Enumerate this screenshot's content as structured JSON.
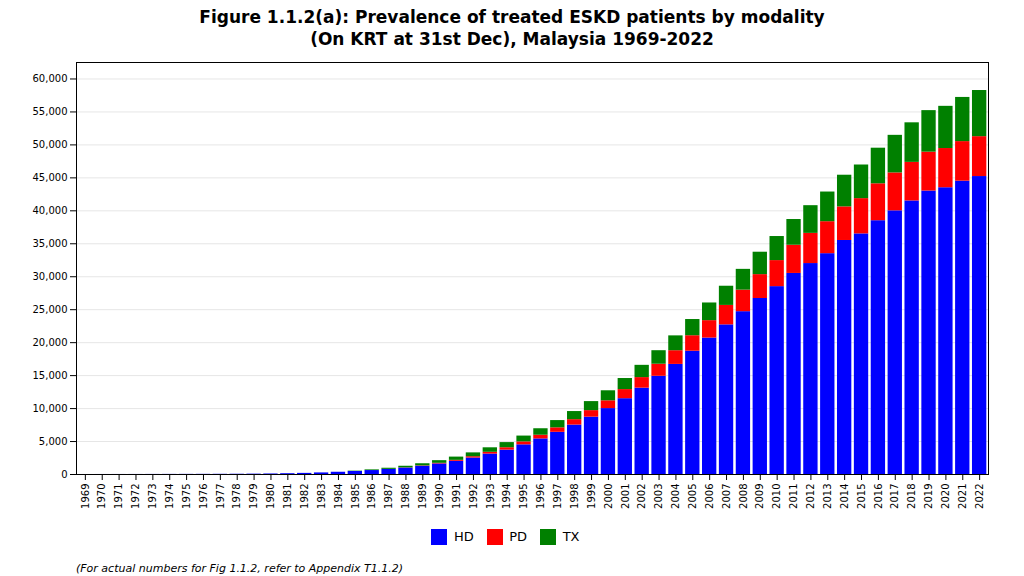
{
  "chart_data": {
    "type": "bar",
    "stacked": true,
    "title": "Figure 1.1.2(a): Prevalence of treated ESKD patients by modality",
    "subtitle": "(On KRT at 31st Dec), Malaysia 1969-2022",
    "caption": "(For actual numbers for Fig 1.1.2, refer to Appendix T1.1.2)",
    "categories": [
      "1969",
      "1970",
      "1971",
      "1972",
      "1973",
      "1974",
      "1975",
      "1976",
      "1977",
      "1978",
      "1979",
      "1980",
      "1981",
      "1982",
      "1983",
      "1984",
      "1985",
      "1986",
      "1987",
      "1988",
      "1989",
      "1990",
      "1991",
      "1992",
      "1993",
      "1994",
      "1995",
      "1996",
      "1997",
      "1998",
      "1999",
      "2000",
      "2001",
      "2002",
      "2003",
      "2004",
      "2005",
      "2006",
      "2007",
      "2008",
      "2009",
      "2010",
      "2011",
      "2012",
      "2013",
      "2014",
      "2015",
      "2016",
      "2017",
      "2018",
      "2019",
      "2020",
      "2021",
      "2022"
    ],
    "series": [
      {
        "name": "HD",
        "color": "#0000FF",
        "values": [
          2,
          4,
          6,
          8,
          12,
          16,
          20,
          25,
          30,
          40,
          55,
          80,
          120,
          170,
          240,
          340,
          460,
          600,
          780,
          980,
          1250,
          1600,
          2000,
          2500,
          3100,
          3700,
          4500,
          5400,
          6400,
          7500,
          8700,
          10000,
          11500,
          13100,
          14900,
          16700,
          18700,
          20700,
          22700,
          24700,
          26700,
          28500,
          30500,
          32000,
          33500,
          35500,
          36500,
          38500,
          40000,
          41500,
          43000,
          43500,
          44500,
          45200
        ]
      },
      {
        "name": "PD",
        "color": "#FF0000",
        "values": [
          0,
          0,
          0,
          0,
          0,
          0,
          0,
          0,
          0,
          0,
          0,
          0,
          0,
          0,
          0,
          0,
          0,
          0,
          0,
          30,
          60,
          100,
          150,
          200,
          270,
          360,
          450,
          560,
          680,
          820,
          990,
          1180,
          1380,
          1600,
          1830,
          2080,
          2350,
          2640,
          2950,
          3270,
          3620,
          3950,
          4280,
          4580,
          4850,
          5100,
          5350,
          5600,
          5750,
          5850,
          5900,
          5950,
          6000,
          6050
        ]
      },
      {
        "name": "TX",
        "color": "#008000",
        "values": [
          0,
          0,
          0,
          0,
          0,
          0,
          0,
          0,
          0,
          0,
          0,
          0,
          0,
          0,
          0,
          0,
          50,
          100,
          170,
          240,
          320,
          400,
          490,
          580,
          680,
          780,
          880,
          980,
          1100,
          1230,
          1370,
          1520,
          1680,
          1860,
          2050,
          2250,
          2460,
          2680,
          2910,
          3150,
          3400,
          3650,
          3900,
          4200,
          4500,
          4800,
          5100,
          5400,
          5700,
          6000,
          6300,
          6400,
          6700,
          7000
        ]
      }
    ],
    "ylim": [
      0,
      62500
    ],
    "yticks": [
      0,
      {
        "value": 5000,
        "label": "5,000"
      },
      {
        "value": 10000,
        "label": "10,000"
      },
      {
        "value": 15000,
        "label": "15,000"
      },
      {
        "value": 20000,
        "label": "20,000"
      },
      {
        "value": 25000,
        "label": "25,000"
      },
      {
        "value": 30000,
        "label": "30,000"
      },
      {
        "value": 35000,
        "label": "35,000"
      },
      {
        "value": 40000,
        "label": "40,000"
      },
      {
        "value": 45000,
        "label": "45,000"
      },
      {
        "value": 50000,
        "label": "50,000"
      },
      {
        "value": 55000,
        "label": "55,000"
      },
      {
        "value": 60000,
        "label": "60,000"
      }
    ],
    "grid": true,
    "legend": "bottom"
  }
}
